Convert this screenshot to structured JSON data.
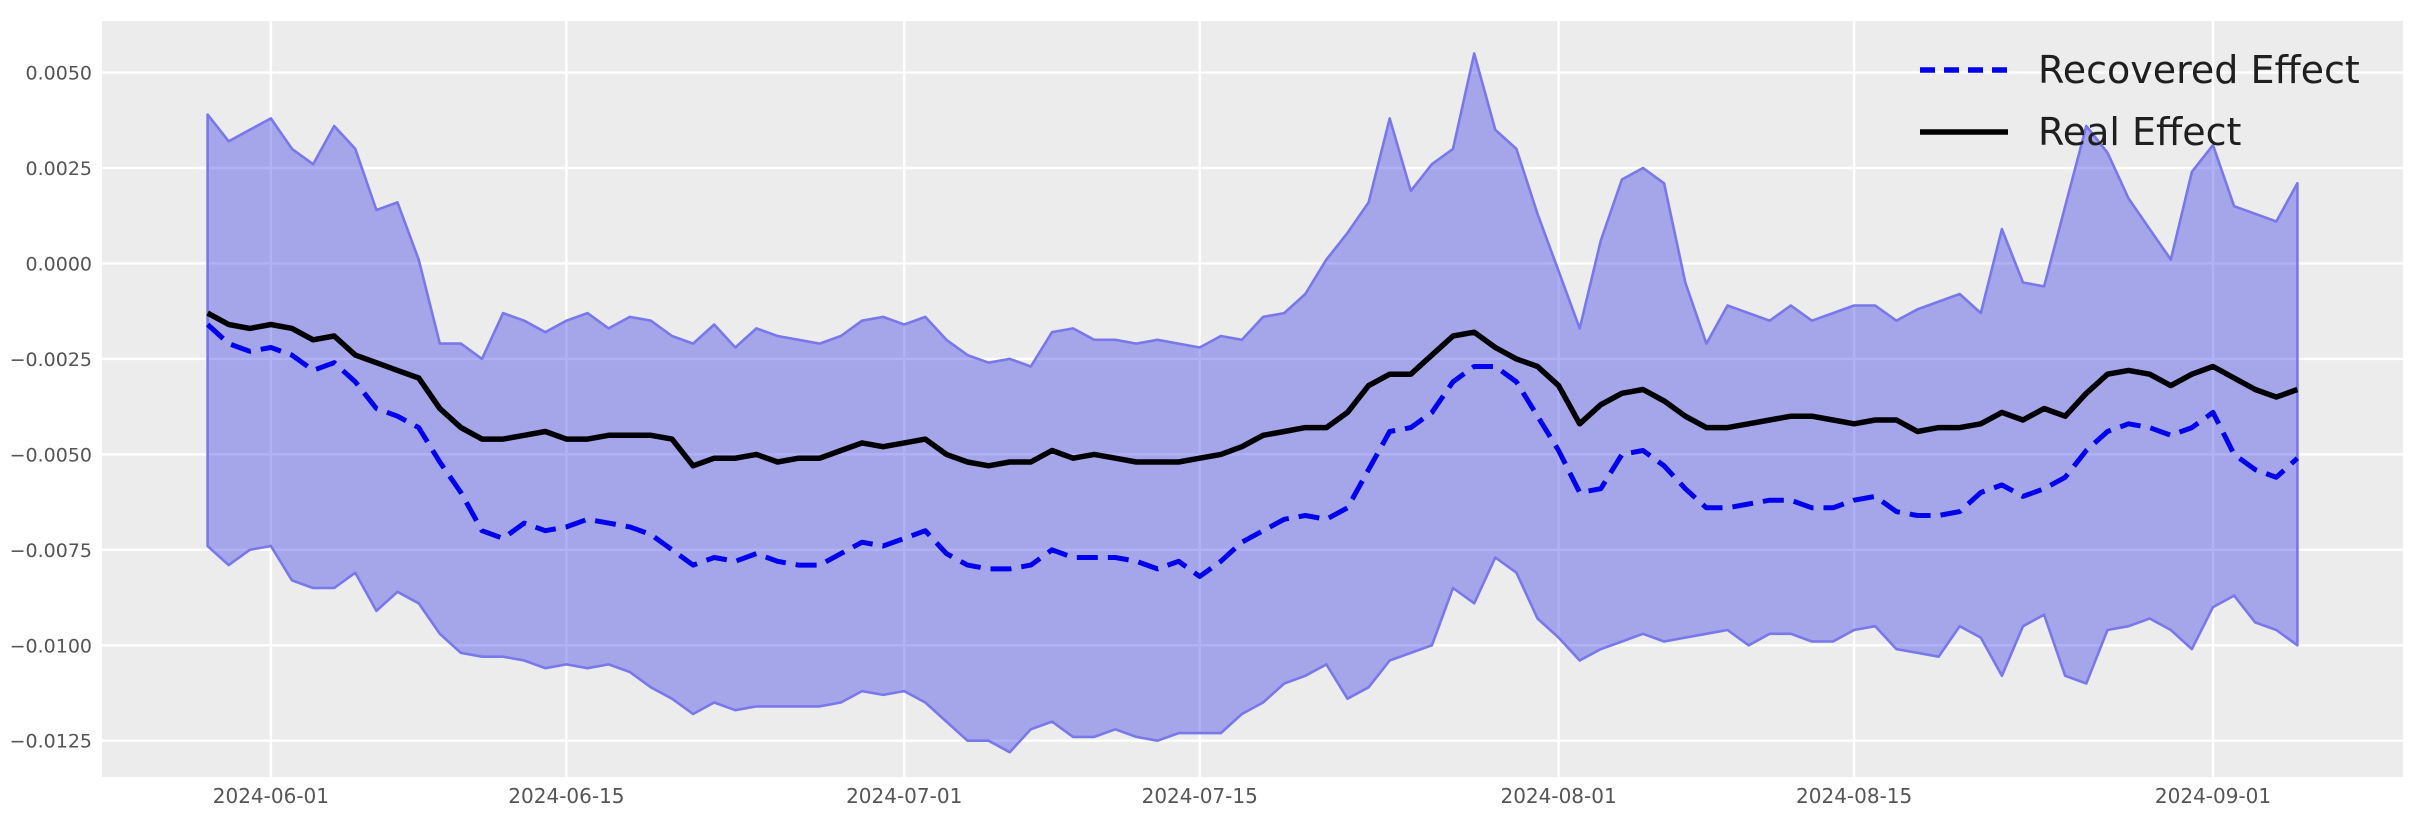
{
  "chart_data": {
    "type": "line",
    "title": "",
    "xlabel": "",
    "ylabel": "",
    "grid": true,
    "plot_bg": "#ECECEC",
    "grid_color": "#FFFFFF",
    "x_axis": {
      "tick_labels": [
        "2024-06-01",
        "2024-06-15",
        "2024-07-01",
        "2024-07-15",
        "2024-08-01",
        "2024-08-15",
        "2024-09-01"
      ],
      "xlim": [
        "2024-05-24",
        "2024-09-10"
      ]
    },
    "y_axis": {
      "tick_labels": [
        "0.0050",
        "0.0025",
        "0.0000",
        "−0.0025",
        "−0.0050",
        "−0.0075",
        "−0.0100",
        "−0.0125"
      ],
      "tick_values": [
        0.005,
        0.0025,
        0.0,
        -0.0025,
        -0.005,
        -0.0075,
        -0.01,
        -0.0125
      ],
      "ylim": [
        -0.01345,
        0.00635
      ]
    },
    "legend": {
      "position": "upper right",
      "entries": [
        {
          "label": "Recovered Effect",
          "color": "#0000EE",
          "style": "dashed"
        },
        {
          "label": "Real Effect",
          "color": "#000000",
          "style": "solid"
        }
      ]
    },
    "dates": [
      "2024-05-29",
      "2024-05-30",
      "2024-05-31",
      "2024-06-01",
      "2024-06-02",
      "2024-06-03",
      "2024-06-04",
      "2024-06-05",
      "2024-06-06",
      "2024-06-07",
      "2024-06-08",
      "2024-06-09",
      "2024-06-10",
      "2024-06-11",
      "2024-06-12",
      "2024-06-13",
      "2024-06-14",
      "2024-06-15",
      "2024-06-16",
      "2024-06-17",
      "2024-06-18",
      "2024-06-19",
      "2024-06-20",
      "2024-06-21",
      "2024-06-22",
      "2024-06-23",
      "2024-06-24",
      "2024-06-25",
      "2024-06-26",
      "2024-06-27",
      "2024-06-28",
      "2024-06-29",
      "2024-06-30",
      "2024-07-01",
      "2024-07-02",
      "2024-07-03",
      "2024-07-04",
      "2024-07-05",
      "2024-07-06",
      "2024-07-07",
      "2024-07-08",
      "2024-07-09",
      "2024-07-10",
      "2024-07-11",
      "2024-07-12",
      "2024-07-13",
      "2024-07-14",
      "2024-07-15",
      "2024-07-16",
      "2024-07-17",
      "2024-07-18",
      "2024-07-19",
      "2024-07-20",
      "2024-07-21",
      "2024-07-22",
      "2024-07-23",
      "2024-07-24",
      "2024-07-25",
      "2024-07-26",
      "2024-07-27",
      "2024-07-28",
      "2024-07-29",
      "2024-07-30",
      "2024-07-31",
      "2024-08-01",
      "2024-08-02",
      "2024-08-03",
      "2024-08-04",
      "2024-08-05",
      "2024-08-06",
      "2024-08-07",
      "2024-08-08",
      "2024-08-09",
      "2024-08-10",
      "2024-08-11",
      "2024-08-12",
      "2024-08-13",
      "2024-08-14",
      "2024-08-15",
      "2024-08-16",
      "2024-08-17",
      "2024-08-18",
      "2024-08-19",
      "2024-08-20",
      "2024-08-21",
      "2024-08-22",
      "2024-08-23",
      "2024-08-24",
      "2024-08-25",
      "2024-08-26",
      "2024-08-27",
      "2024-08-28",
      "2024-08-29",
      "2024-08-30",
      "2024-08-31",
      "2024-09-01",
      "2024-09-02",
      "2024-09-03",
      "2024-09-04",
      "2024-09-05"
    ],
    "series": [
      {
        "name": "Recovered Effect",
        "color": "#0000EE",
        "style": "dashed",
        "values": [
          -0.0016,
          -0.0021,
          -0.0023,
          -0.0022,
          -0.0024,
          -0.0028,
          -0.0026,
          -0.0031,
          -0.0038,
          -0.004,
          -0.0043,
          -0.0052,
          -0.006,
          -0.007,
          -0.0072,
          -0.0068,
          -0.007,
          -0.0069,
          -0.0067,
          -0.0068,
          -0.0069,
          -0.0071,
          -0.0075,
          -0.0079,
          -0.0077,
          -0.0078,
          -0.0076,
          -0.0078,
          -0.0079,
          -0.0079,
          -0.0076,
          -0.0073,
          -0.0074,
          -0.0072,
          -0.007,
          -0.0076,
          -0.0079,
          -0.008,
          -0.008,
          -0.0079,
          -0.0075,
          -0.0077,
          -0.0077,
          -0.0077,
          -0.0078,
          -0.008,
          -0.0078,
          -0.0082,
          -0.0078,
          -0.0073,
          -0.007,
          -0.0067,
          -0.0066,
          -0.0067,
          -0.0064,
          -0.0054,
          -0.0044,
          -0.0043,
          -0.0039,
          -0.0031,
          -0.0027,
          -0.0027,
          -0.0031,
          -0.004,
          -0.0049,
          -0.006,
          -0.0059,
          -0.005,
          -0.0049,
          -0.0053,
          -0.0059,
          -0.0064,
          -0.0064,
          -0.0063,
          -0.0062,
          -0.0062,
          -0.0064,
          -0.0064,
          -0.0062,
          -0.0061,
          -0.0065,
          -0.0066,
          -0.0066,
          -0.0065,
          -0.006,
          -0.0058,
          -0.0061,
          -0.0059,
          -0.0056,
          -0.0049,
          -0.0044,
          -0.0042,
          -0.0043,
          -0.0045,
          -0.0043,
          -0.0039,
          -0.005,
          -0.0054,
          -0.0056,
          -0.0051
        ]
      },
      {
        "name": "Real Effect",
        "color": "#000000",
        "style": "solid",
        "values": [
          -0.0013,
          -0.0016,
          -0.0017,
          -0.0016,
          -0.0017,
          -0.002,
          -0.0019,
          -0.0024,
          -0.0026,
          -0.0028,
          -0.003,
          -0.0038,
          -0.0043,
          -0.0046,
          -0.0046,
          -0.0045,
          -0.0044,
          -0.0046,
          -0.0046,
          -0.0045,
          -0.0045,
          -0.0045,
          -0.0046,
          -0.0053,
          -0.0051,
          -0.0051,
          -0.005,
          -0.0052,
          -0.0051,
          -0.0051,
          -0.0049,
          -0.0047,
          -0.0048,
          -0.0047,
          -0.0046,
          -0.005,
          -0.0052,
          -0.0053,
          -0.0052,
          -0.0052,
          -0.0049,
          -0.0051,
          -0.005,
          -0.0051,
          -0.0052,
          -0.0052,
          -0.0052,
          -0.0051,
          -0.005,
          -0.0048,
          -0.0045,
          -0.0044,
          -0.0043,
          -0.0043,
          -0.0039,
          -0.0032,
          -0.0029,
          -0.0029,
          -0.0024,
          -0.0019,
          -0.0018,
          -0.0022,
          -0.0025,
          -0.0027,
          -0.0032,
          -0.0042,
          -0.0037,
          -0.0034,
          -0.0033,
          -0.0036,
          -0.004,
          -0.0043,
          -0.0043,
          -0.0042,
          -0.0041,
          -0.004,
          -0.004,
          -0.0041,
          -0.0042,
          -0.0041,
          -0.0041,
          -0.0044,
          -0.0043,
          -0.0043,
          -0.0042,
          -0.0039,
          -0.0041,
          -0.0038,
          -0.004,
          -0.0034,
          -0.0029,
          -0.0028,
          -0.0029,
          -0.0032,
          -0.0029,
          -0.0027,
          -0.003,
          -0.0033,
          -0.0035,
          -0.0033
        ]
      }
    ],
    "band": {
      "name": "confidence-band",
      "fill": "rgba(60,60,232,0.40)",
      "edge": "#7878EA",
      "upper": [
        0.0039,
        0.0032,
        0.0035,
        0.0038,
        0.003,
        0.0026,
        0.0036,
        0.003,
        0.0014,
        0.0016,
        0.0001,
        -0.0021,
        -0.0021,
        -0.0025,
        -0.0013,
        -0.0015,
        -0.0018,
        -0.0015,
        -0.0013,
        -0.0017,
        -0.0014,
        -0.0015,
        -0.0019,
        -0.0021,
        -0.0016,
        -0.0022,
        -0.0017,
        -0.0019,
        -0.002,
        -0.0021,
        -0.0019,
        -0.0015,
        -0.0014,
        -0.0016,
        -0.0014,
        -0.002,
        -0.0024,
        -0.0026,
        -0.0025,
        -0.0027,
        -0.0018,
        -0.0017,
        -0.002,
        -0.002,
        -0.0021,
        -0.002,
        -0.0021,
        -0.0022,
        -0.0019,
        -0.002,
        -0.0014,
        -0.0013,
        -0.0008,
        0.0001,
        0.0008,
        0.0016,
        0.0038,
        0.0019,
        0.0026,
        0.003,
        0.0055,
        0.0035,
        0.003,
        0.0013,
        -0.0002,
        -0.0017,
        0.0006,
        0.0022,
        0.0025,
        0.0021,
        -0.0005,
        -0.0021,
        -0.0011,
        -0.0013,
        -0.0015,
        -0.0011,
        -0.0015,
        -0.0013,
        -0.0011,
        -0.0011,
        -0.0015,
        -0.0012,
        -0.001,
        -0.0008,
        -0.0013,
        0.0009,
        -0.0005,
        -0.0006,
        0.0015,
        0.0036,
        0.0029,
        0.0017,
        0.0009,
        0.0001,
        0.0024,
        0.0031,
        0.0015,
        0.0013,
        0.0011,
        0.0021
      ],
      "lower": [
        -0.0074,
        -0.0079,
        -0.0075,
        -0.0074,
        -0.0083,
        -0.0085,
        -0.0085,
        -0.0081,
        -0.0091,
        -0.0086,
        -0.0089,
        -0.0097,
        -0.0102,
        -0.0103,
        -0.0103,
        -0.0104,
        -0.0106,
        -0.0105,
        -0.0106,
        -0.0105,
        -0.0107,
        -0.0111,
        -0.0114,
        -0.0118,
        -0.0115,
        -0.0117,
        -0.0116,
        -0.0116,
        -0.0116,
        -0.0116,
        -0.0115,
        -0.0112,
        -0.0113,
        -0.0112,
        -0.0115,
        -0.012,
        -0.0125,
        -0.0125,
        -0.0128,
        -0.0122,
        -0.012,
        -0.0124,
        -0.0124,
        -0.0122,
        -0.0124,
        -0.0125,
        -0.0123,
        -0.0123,
        -0.0123,
        -0.0118,
        -0.0115,
        -0.011,
        -0.0108,
        -0.0105,
        -0.0114,
        -0.0111,
        -0.0104,
        -0.0102,
        -0.01,
        -0.0085,
        -0.0089,
        -0.0077,
        -0.0081,
        -0.0093,
        -0.0098,
        -0.0104,
        -0.0101,
        -0.0099,
        -0.0097,
        -0.0099,
        -0.0098,
        -0.0097,
        -0.0096,
        -0.01,
        -0.0097,
        -0.0097,
        -0.0099,
        -0.0099,
        -0.0096,
        -0.0095,
        -0.0101,
        -0.0102,
        -0.0103,
        -0.0095,
        -0.0098,
        -0.0108,
        -0.0095,
        -0.0092,
        -0.0108,
        -0.011,
        -0.0096,
        -0.0095,
        -0.0093,
        -0.0096,
        -0.0101,
        -0.009,
        -0.0087,
        -0.0094,
        -0.0096,
        -0.01
      ]
    }
  }
}
